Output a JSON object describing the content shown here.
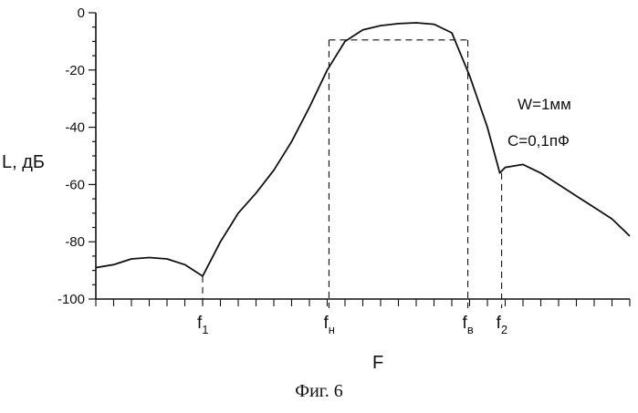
{
  "chart_data": {
    "type": "line",
    "ylabel": "L, дБ",
    "xlabel": "F",
    "ylim": [
      -100,
      0
    ],
    "yticks": [
      "0",
      "-20",
      "-40",
      "-60",
      "-80",
      "-100"
    ],
    "ytick_values": [
      0,
      -20,
      -40,
      -60,
      -80,
      -100
    ],
    "xlim": [
      0,
      30
    ],
    "x_minor_ticks": 30,
    "grid": false,
    "annotations": [
      "W=1мм",
      "C=0,1пФ"
    ],
    "series": [
      {
        "x": [
          0,
          1,
          2,
          3,
          4,
          5,
          6,
          7,
          7.5,
          8,
          9,
          10,
          11,
          12,
          13,
          14,
          15,
          16,
          17,
          18,
          19,
          20,
          21,
          22,
          22.7,
          23,
          24,
          25,
          26,
          27,
          28,
          29,
          30
        ],
        "y": [
          -89,
          -88,
          -86,
          -85.5,
          -86,
          -88,
          -92,
          -80,
          -75,
          -70,
          -63,
          -55,
          -45,
          -33,
          -20,
          -10,
          -6,
          -4.5,
          -3.8,
          -3.5,
          -4,
          -7,
          -22,
          -40,
          -56,
          -54,
          -53,
          -56,
          -60,
          -64,
          -68,
          -72,
          -78
        ]
      }
    ],
    "markers": [
      {
        "name": "f",
        "sub": "1",
        "x": 6,
        "y": -92
      },
      {
        "name": "f",
        "sub": "н",
        "x": 13.1,
        "y": -9.5
      },
      {
        "name": "f",
        "sub": "в",
        "x": 20.9,
        "y": -9.5
      },
      {
        "name": "f",
        "sub": "2",
        "x": 22.8,
        "y": -56
      }
    ]
  },
  "caption": "Фиг. 6"
}
